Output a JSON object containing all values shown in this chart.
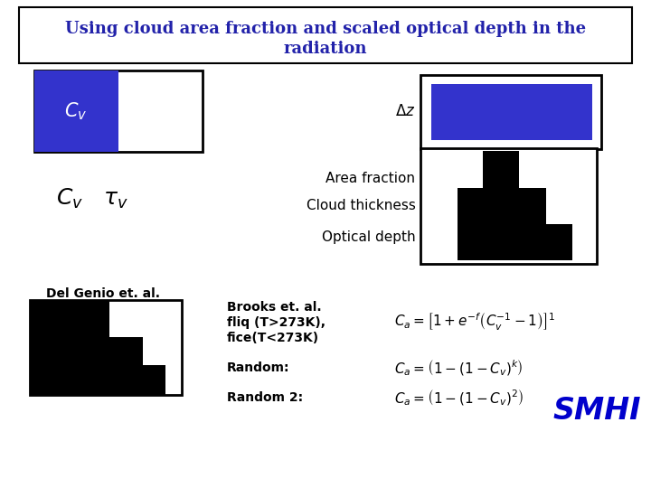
{
  "title_line1": "Using cloud area fraction and scaled optical depth in the",
  "title_line2": "radiation",
  "title_color": "#2222AA",
  "blue_color": "#3333CC",
  "black_color": "#000000",
  "white_color": "#FFFFFF",
  "smhi_color": "#0000CC",
  "text_area_fraction": "Area fraction",
  "text_cloud_thickness": "Cloud thickness",
  "text_optical_depth": "Optical depth",
  "text_del_genio": "Del Genio et. al.",
  "text_brooks_line1": "Brooks et. al.",
  "text_brooks_line2": "fliq (T>273K),",
  "text_brooks_line3": "fice(T<273K)",
  "text_random": "Random:",
  "text_random2": "Random 2:"
}
